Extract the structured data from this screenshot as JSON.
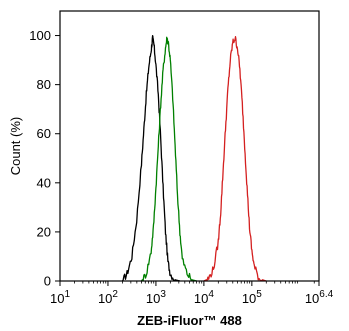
{
  "chart_data": {
    "type": "line",
    "xlabel": "ZEB-iFluor™ 488",
    "ylabel": "Count  (%)",
    "x_scale": "log",
    "xlim": [
      1,
      6.4
    ],
    "ylim": [
      0,
      110
    ],
    "x_ticks": [
      {
        "value": 1,
        "base": "10",
        "exp": "1"
      },
      {
        "value": 2,
        "base": "10",
        "exp": "2"
      },
      {
        "value": 3,
        "base": "10",
        "exp": "3"
      },
      {
        "value": 4,
        "base": "10",
        "exp": "4"
      },
      {
        "value": 5,
        "base": "10",
        "exp": "5"
      },
      {
        "value": 6.4,
        "base": "10",
        "exp": "6.4"
      }
    ],
    "y_ticks": [
      {
        "value": 0,
        "label": "0"
      },
      {
        "value": 20,
        "label": "20"
      },
      {
        "value": 40,
        "label": "40"
      },
      {
        "value": 60,
        "label": "60"
      },
      {
        "value": 80,
        "label": "80"
      },
      {
        "value": 100,
        "label": "100"
      }
    ],
    "grid": false,
    "series": [
      {
        "color": "#000000",
        "x": [
          2.3,
          2.4,
          2.5,
          2.6,
          2.7,
          2.75,
          2.8,
          2.85,
          2.9,
          2.93,
          2.96,
          3.0,
          3.05,
          3.1,
          3.15,
          3.2,
          3.25,
          3.3,
          3.4,
          3.5
        ],
        "y": [
          0,
          3,
          10,
          25,
          48,
          62,
          76,
          87,
          94,
          99,
          96,
          88,
          76,
          58,
          38,
          20,
          8,
          3,
          0.5,
          0
        ]
      },
      {
        "color": "#008000",
        "x": [
          2.7,
          2.8,
          2.9,
          2.95,
          3.0,
          3.05,
          3.1,
          3.15,
          3.2,
          3.23,
          3.26,
          3.3,
          3.35,
          3.4,
          3.45,
          3.5,
          3.55,
          3.65,
          3.75,
          3.85
        ],
        "y": [
          0,
          3,
          12,
          22,
          38,
          55,
          72,
          86,
          95,
          99,
          97,
          90,
          75,
          55,
          35,
          20,
          9,
          3,
          0.5,
          0
        ]
      },
      {
        "color": "#d42020",
        "x": [
          4.0,
          4.1,
          4.2,
          4.3,
          4.35,
          4.4,
          4.45,
          4.5,
          4.55,
          4.6,
          4.65,
          4.7,
          4.75,
          4.8,
          4.85,
          4.9,
          4.95,
          5.0,
          5.05,
          5.15,
          5.3
        ],
        "y": [
          0,
          1,
          5,
          16,
          28,
          45,
          62,
          78,
          90,
          97,
          99,
          95,
          86,
          72,
          55,
          38,
          22,
          12,
          6,
          1,
          0
        ]
      }
    ]
  }
}
